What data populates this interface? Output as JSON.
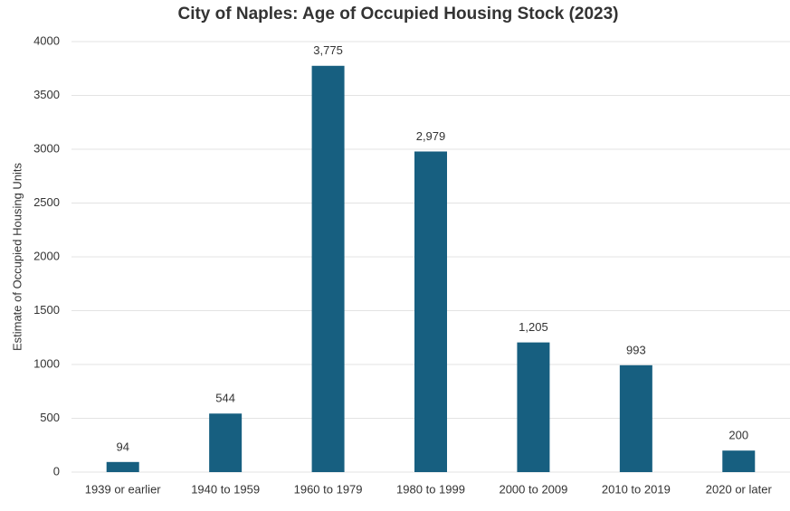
{
  "chart_data": {
    "type": "bar",
    "title": "City of Naples: Age of Occupied Housing Stock (2023)",
    "y_label": "Estimate of Occupied Housing Units",
    "categories": [
      "1939 or earlier",
      "1940 to 1959",
      "1960 to 1979",
      "1980 to 1999",
      "2000 to 2009",
      "2010 to 2019",
      "2020 or later"
    ],
    "values": [
      94,
      544,
      3775,
      2979,
      1205,
      993,
      200
    ],
    "value_labels": [
      "94",
      "544",
      "3,775",
      "2,979",
      "1,205",
      "993",
      "200"
    ],
    "color": "#175f80",
    "ylim": [
      0,
      4000
    ],
    "yticks": [
      0,
      500,
      1000,
      1500,
      2000,
      2500,
      3000,
      3500,
      4000
    ],
    "grid": true
  }
}
